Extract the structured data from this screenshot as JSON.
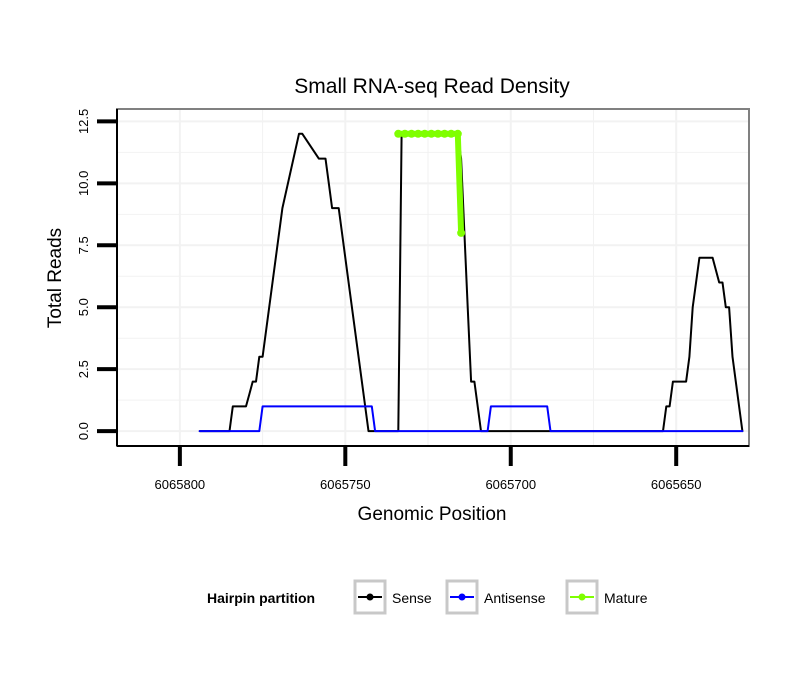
{
  "chart_data": {
    "type": "line",
    "title": "Small RNA-seq Read Density",
    "xlabel": "Genomic Position",
    "ylabel": "Total Reads",
    "x_reversed": true,
    "xlim": [
      6065819,
      6065628
    ],
    "ylim": [
      -0.6,
      13
    ],
    "x_ticks": [
      6065800,
      6065750,
      6065700,
      6065650
    ],
    "x_tick_labels": [
      "6065800",
      "6065750",
      "6065700",
      "6065650"
    ],
    "y_ticks": [
      0,
      2.5,
      5,
      7.5,
      10,
      12.5
    ],
    "y_tick_labels": [
      "0.0",
      "2.5",
      "5.0",
      "7.5",
      "10.0",
      "12.5"
    ],
    "grid": true,
    "legend": {
      "title": "Hairpin partition",
      "position": "bottom",
      "entries": [
        "Sense",
        "Antisense",
        "Mature"
      ]
    },
    "colors": {
      "Sense": "#000000",
      "Antisense": "#0000ff",
      "Mature": "#7fff00"
    },
    "series": [
      {
        "name": "Sense",
        "x": [
          6065794,
          6065785,
          6065784,
          6065780,
          6065779,
          6065778,
          6065777,
          6065776,
          6065775,
          6065774,
          6065772,
          6065769,
          6065764,
          6065763,
          6065758,
          6065757,
          6065756,
          6065755,
          6065754,
          6065752,
          6065751,
          6065749,
          6065743,
          6065734,
          6065733,
          6065716,
          6065715,
          6065714,
          6065713,
          6065712,
          6065711,
          6065709,
          6065654,
          6065653,
          6065652,
          6065651,
          6065648,
          6065647,
          6065646,
          6065645,
          6065643,
          6065641,
          6065640,
          6065639,
          6065637,
          6065636,
          6065635,
          6065634,
          6065633,
          6065632,
          6065630
        ],
        "y": [
          0,
          0,
          1,
          1,
          1.5,
          2,
          2,
          3,
          3,
          4,
          6,
          9,
          12,
          12,
          11,
          11,
          11,
          10,
          9,
          9,
          8,
          6,
          0,
          0,
          12,
          12,
          11,
          8,
          5,
          2,
          2,
          0,
          0,
          1,
          1,
          2,
          2,
          2,
          3,
          5,
          7,
          7,
          7,
          7,
          6,
          6,
          5,
          5,
          3,
          2,
          0
        ]
      },
      {
        "name": "Antisense",
        "x": [
          6065794,
          6065776,
          6065775,
          6065756,
          6065755,
          6065742,
          6065741,
          6065707,
          6065706,
          6065689,
          6065688,
          6065679,
          6065678,
          6065630
        ],
        "y": [
          0,
          0,
          1,
          1,
          1,
          1,
          0,
          0,
          1,
          1,
          0,
          0,
          0,
          0
        ]
      },
      {
        "name": "Mature",
        "x": [
          6065734,
          6065732,
          6065730,
          6065728,
          6065726,
          6065724,
          6065722,
          6065720,
          6065718,
          6065716,
          6065715
        ],
        "y": [
          12,
          12,
          12,
          12,
          12,
          12,
          12,
          12,
          12,
          12,
          8
        ]
      }
    ]
  }
}
